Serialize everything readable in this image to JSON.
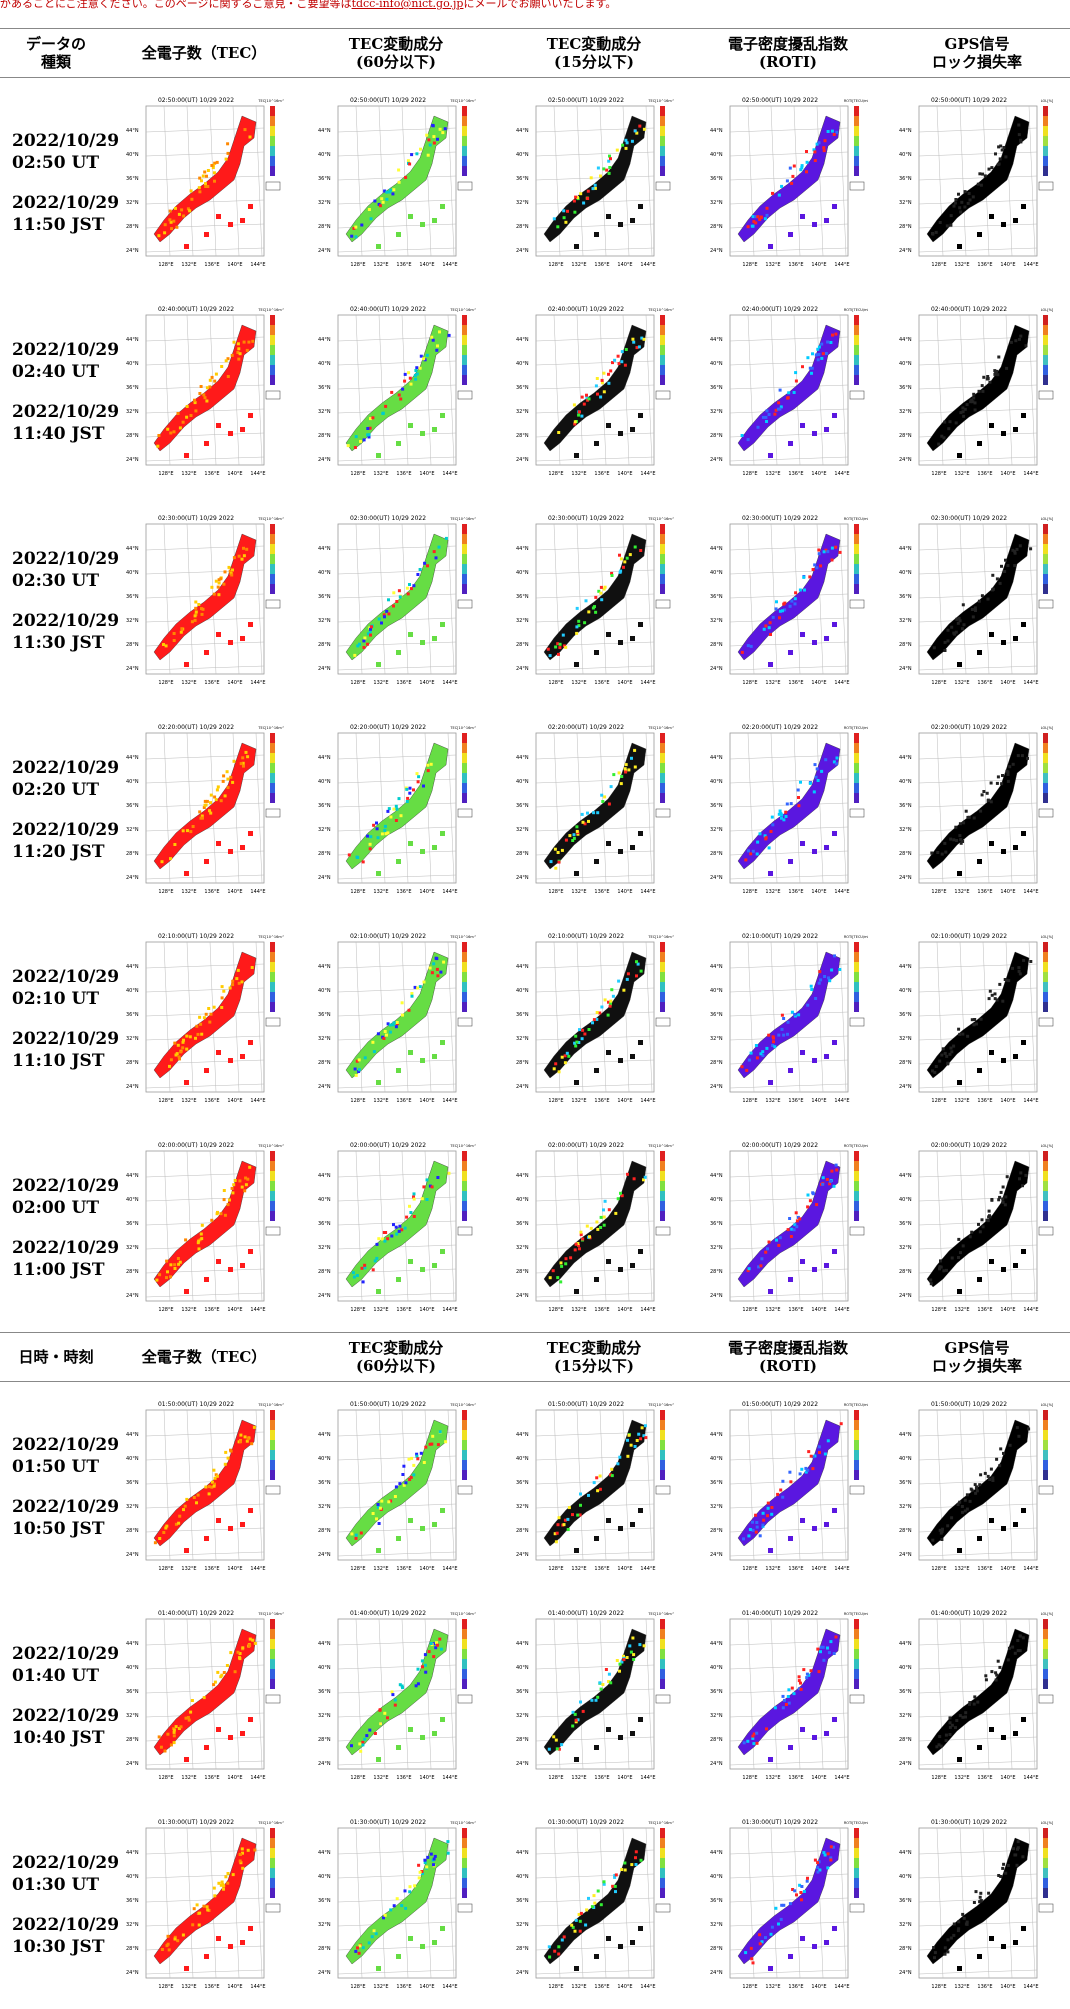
{
  "notice": {
    "text_before": "があることにご注意ください。このページに関するご意見・ご要望等は",
    "link_text": "tdcc-info@nict.go.jp",
    "text_after": "にメールでお願いいたします。"
  },
  "headers": {
    "section1_first": "データの\n種類",
    "section2_first": "日時・時刻",
    "columns": [
      "全電子数（TEC）",
      "TEC変動成分\n(60分以下)",
      "TEC変動成分\n(15分以下)",
      "電子密度擾乱指数\n(ROTI)",
      "GPS信号\nロック損失率"
    ]
  },
  "map_labels": {
    "lat": [
      "44°N",
      "40°N",
      "36°N",
      "32°N",
      "28°N",
      "24°N"
    ],
    "lon": [
      "128°E",
      "132°E",
      "136°E",
      "140°E",
      "144°E"
    ],
    "colorbar_units": [
      "TEC[10^16m^-2]",
      "TEC[10^16m^-2]",
      "TEC[10^16m^-2]",
      "ROTI[TECU/min]",
      "LOL[%]"
    ]
  },
  "map_colors": {
    "tec": "#ff1a1a",
    "tec60": "#66dd44",
    "tec15": "#101010",
    "roti": "#5a17e0",
    "lol": "#000000"
  },
  "rows": [
    {
      "map_title": "02:50:00(UT) 10/29 2022",
      "ut_date": "2022/10/29",
      "ut_time": "02:50 UT",
      "jst_date": "2022/10/29",
      "jst_time": "11:50 JST"
    },
    {
      "map_title": "02:40:00(UT) 10/29 2022",
      "ut_date": "2022/10/29",
      "ut_time": "02:40 UT",
      "jst_date": "2022/10/29",
      "jst_time": "11:40 JST"
    },
    {
      "map_title": "02:30:00(UT) 10/29 2022",
      "ut_date": "2022/10/29",
      "ut_time": "02:30 UT",
      "jst_date": "2022/10/29",
      "jst_time": "11:30 JST"
    },
    {
      "map_title": "02:20:00(UT) 10/29 2022",
      "ut_date": "2022/10/29",
      "ut_time": "02:20 UT",
      "jst_date": "2022/10/29",
      "jst_time": "11:20 JST"
    },
    {
      "map_title": "02:10:00(UT) 10/29 2022",
      "ut_date": "2022/10/29",
      "ut_time": "02:10 UT",
      "jst_date": "2022/10/29",
      "jst_time": "11:10 JST"
    },
    {
      "map_title": "02:00:00(UT) 10/29 2022",
      "ut_date": "2022/10/29",
      "ut_time": "02:00 UT",
      "jst_date": "2022/10/29",
      "jst_time": "11:00 JST"
    },
    {
      "map_title": "01:50:00(UT) 10/29 2022",
      "ut_date": "2022/10/29",
      "ut_time": "01:50 UT",
      "jst_date": "2022/10/29",
      "jst_time": "10:50 JST"
    },
    {
      "map_title": "01:40:00(UT) 10/29 2022",
      "ut_date": "2022/10/29",
      "ut_time": "01:40 UT",
      "jst_date": "2022/10/29",
      "jst_time": "10:40 JST"
    },
    {
      "map_title": "01:30:00(UT) 10/29 2022",
      "ut_date": "2022/10/29",
      "ut_time": "01:30 UT",
      "jst_date": "2022/10/29",
      "jst_time": "10:30 JST"
    }
  ]
}
